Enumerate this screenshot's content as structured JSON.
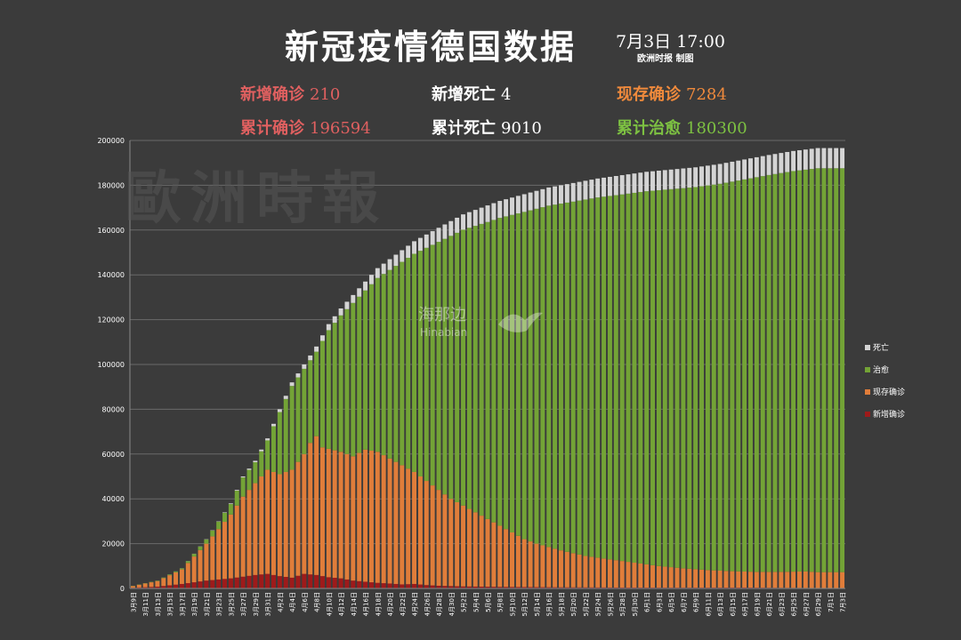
{
  "header": {
    "title": "新冠疫情德国数据",
    "date": "7月3日  17:00",
    "source": "欧洲时报 制图"
  },
  "stats": {
    "new_confirmed": {
      "label": "新增确诊",
      "value": "210",
      "color": "#e06060"
    },
    "new_deaths": {
      "label": "新增死亡",
      "value": "4",
      "color": "#ffffff"
    },
    "active": {
      "label": "现存确诊",
      "value": "7284",
      "color": "#f08a3c"
    },
    "total_confirmed": {
      "label": "累计确诊",
      "value": "196594",
      "color": "#e06060"
    },
    "total_deaths": {
      "label": "累计死亡",
      "value": "9010",
      "color": "#ffffff"
    },
    "total_recovered": {
      "label": "累计治愈",
      "value": "180300",
      "color": "#7dc142"
    }
  },
  "watermarks": {
    "main": "歐洲時報",
    "center_cn": "海那边",
    "center_en": "Hinabian"
  },
  "colors": {
    "death": "#d4d4d4",
    "recovered": "#73a336",
    "active": "#e07d3a",
    "new": "#9e1a1a",
    "grid": "#6a6a6a"
  },
  "chart_data": {
    "type": "bar",
    "stacked": true,
    "title": "",
    "ylim": [
      0,
      200000
    ],
    "yticks": [
      "0",
      "20000",
      "40000",
      "60000",
      "80000",
      "100000",
      "120000",
      "140000",
      "160000",
      "180000",
      "200000"
    ],
    "grid": true,
    "legend_position": "right",
    "legend": [
      "死亡",
      "治愈",
      "现存确诊",
      "新增确诊"
    ],
    "categories_shown": [
      "3月9日",
      "3月11日",
      "3月13日",
      "3月15日",
      "3月17日",
      "3月19日",
      "3月21日",
      "3月23日",
      "3月25日",
      "3月27日",
      "3月29日",
      "3月31日",
      "4月2日",
      "4月4日",
      "4月6日",
      "4月8日",
      "4月10日",
      "4月12日",
      "4月14日",
      "4月16日",
      "4月18日",
      "4月20日",
      "4月22日",
      "4月24日",
      "4月26日",
      "4月28日",
      "4月30日",
      "5月2日",
      "5月4日",
      "5月6日",
      "5月8日",
      "5月10日",
      "5月12日",
      "5月14日",
      "5月16日",
      "5月18日",
      "5月20日",
      "5月22日",
      "5月24日",
      "5月26日",
      "5月28日",
      "5月30日",
      "6月1日",
      "6月3日",
      "6月5日",
      "6月7日",
      "6月9日",
      "6月11日",
      "6月13日",
      "6月15日",
      "6月17日",
      "6月19日",
      "6月21日",
      "6月23日",
      "6月25日",
      "6月27日",
      "6月29日",
      "7月1日",
      "7月3日"
    ],
    "series_names": [
      "新增确诊",
      "现存确诊",
      "治愈",
      "死亡"
    ],
    "anchors": {
      "total": [
        [
          0,
          1200
        ],
        [
          4,
          3500
        ],
        [
          8,
          9000
        ],
        [
          12,
          22000
        ],
        [
          16,
          38000
        ],
        [
          18,
          50000
        ],
        [
          20,
          57000
        ],
        [
          22,
          67000
        ],
        [
          24,
          80000
        ],
        [
          26,
          92000
        ],
        [
          28,
          100000
        ],
        [
          30,
          108000
        ],
        [
          32,
          118000
        ],
        [
          34,
          125000
        ],
        [
          36,
          131000
        ],
        [
          38,
          137000
        ],
        [
          40,
          143000
        ],
        [
          42,
          147000
        ],
        [
          44,
          151000
        ],
        [
          46,
          155000
        ],
        [
          48,
          158000
        ],
        [
          50,
          161000
        ],
        [
          52,
          164000
        ],
        [
          54,
          167000
        ],
        [
          56,
          169000
        ],
        [
          60,
          173000
        ],
        [
          64,
          176000
        ],
        [
          68,
          179000
        ],
        [
          72,
          181000
        ],
        [
          76,
          183000
        ],
        [
          80,
          184500
        ],
        [
          84,
          186000
        ],
        [
          88,
          187000
        ],
        [
          92,
          188000
        ],
        [
          96,
          189500
        ],
        [
          100,
          191500
        ],
        [
          104,
          193500
        ],
        [
          108,
          195300
        ],
        [
          112,
          196594
        ]
      ],
      "active": [
        [
          0,
          1100
        ],
        [
          4,
          3300
        ],
        [
          8,
          8500
        ],
        [
          12,
          20000
        ],
        [
          16,
          33000
        ],
        [
          18,
          41000
        ],
        [
          20,
          47000
        ],
        [
          22,
          53000
        ],
        [
          24,
          51000
        ],
        [
          26,
          53000
        ],
        [
          28,
          60000
        ],
        [
          29,
          65000
        ],
        [
          30,
          68000
        ],
        [
          31,
          63000
        ],
        [
          34,
          61000
        ],
        [
          36,
          59000
        ],
        [
          38,
          62000
        ],
        [
          40,
          61000
        ],
        [
          42,
          58000
        ],
        [
          44,
          55000
        ],
        [
          46,
          52000
        ],
        [
          48,
          48000
        ],
        [
          50,
          44000
        ],
        [
          52,
          40000
        ],
        [
          54,
          37000
        ],
        [
          56,
          34000
        ],
        [
          58,
          31000
        ],
        [
          60,
          28000
        ],
        [
          62,
          25000
        ],
        [
          64,
          22000
        ],
        [
          66,
          20000
        ],
        [
          70,
          17000
        ],
        [
          74,
          14500
        ],
        [
          78,
          13000
        ],
        [
          82,
          11500
        ],
        [
          86,
          10000
        ],
        [
          90,
          9000
        ],
        [
          94,
          8200
        ],
        [
          98,
          7700
        ],
        [
          102,
          7400
        ],
        [
          106,
          7400
        ],
        [
          110,
          7600
        ],
        [
          112,
          7284
        ]
      ],
      "deaths": [
        [
          0,
          2
        ],
        [
          8,
          40
        ],
        [
          14,
          150
        ],
        [
          18,
          400
        ],
        [
          22,
          900
        ],
        [
          26,
          1600
        ],
        [
          30,
          2300
        ],
        [
          34,
          3100
        ],
        [
          40,
          4400
        ],
        [
          46,
          5600
        ],
        [
          52,
          6600
        ],
        [
          58,
          7400
        ],
        [
          64,
          7900
        ],
        [
          72,
          8300
        ],
        [
          80,
          8600
        ],
        [
          90,
          8800
        ],
        [
          100,
          8900
        ],
        [
          112,
          9010
        ]
      ],
      "new": [
        [
          0,
          300
        ],
        [
          4,
          800
        ],
        [
          8,
          2000
        ],
        [
          12,
          3500
        ],
        [
          16,
          4500
        ],
        [
          20,
          6000
        ],
        [
          22,
          6500
        ],
        [
          24,
          5500
        ],
        [
          26,
          4800
        ],
        [
          28,
          6500
        ],
        [
          30,
          6000
        ],
        [
          32,
          5000
        ],
        [
          34,
          4500
        ],
        [
          36,
          3500
        ],
        [
          38,
          3000
        ],
        [
          40,
          2500
        ],
        [
          42,
          2200
        ],
        [
          44,
          1800
        ],
        [
          46,
          2000
        ],
        [
          48,
          1500
        ],
        [
          50,
          1200
        ],
        [
          54,
          900
        ],
        [
          60,
          700
        ],
        [
          70,
          500
        ],
        [
          80,
          400
        ],
        [
          90,
          350
        ],
        [
          100,
          400
        ],
        [
          112,
          210
        ]
      ]
    }
  }
}
